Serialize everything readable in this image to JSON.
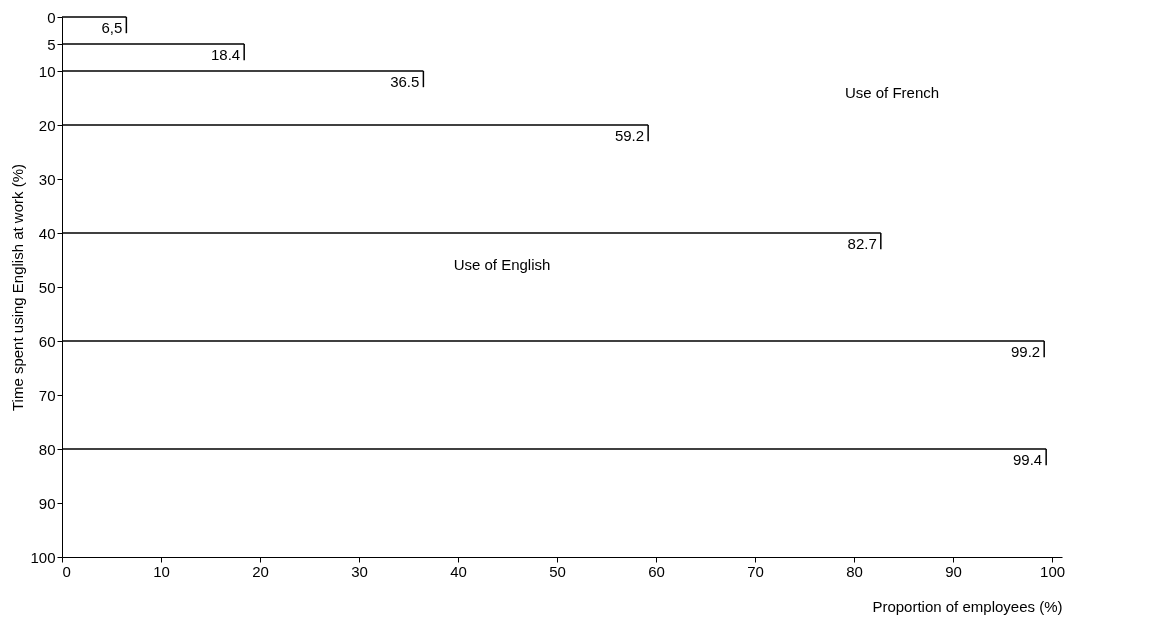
{
  "chart_data": {
    "type": "bar",
    "orientation": "horizontal",
    "x": [
      0,
      5,
      10,
      20,
      40,
      60,
      80
    ],
    "values": [
      6.5,
      18.4,
      36.5,
      59.2,
      82.7,
      99.2,
      99.4
    ],
    "value_labels": [
      "6,5",
      "18.4",
      "36.5",
      "59.2",
      "82.7",
      "99.2",
      "99.4"
    ],
    "color": "#000000",
    "xlabel": "Proportion of employees (%)",
    "ylabel": "Time spent using English at work (%)",
    "xlim": [
      0,
      101
    ],
    "xticks": [
      0,
      10,
      20,
      30,
      40,
      50,
      60,
      70,
      80,
      90,
      100
    ],
    "ylim": [
      100,
      0
    ],
    "yticks": [
      0,
      5,
      10,
      20,
      30,
      40,
      50,
      60,
      70,
      80,
      90,
      100
    ],
    "annotations": [
      "Use of French",
      "Use of English"
    ],
    "grid": false
  }
}
